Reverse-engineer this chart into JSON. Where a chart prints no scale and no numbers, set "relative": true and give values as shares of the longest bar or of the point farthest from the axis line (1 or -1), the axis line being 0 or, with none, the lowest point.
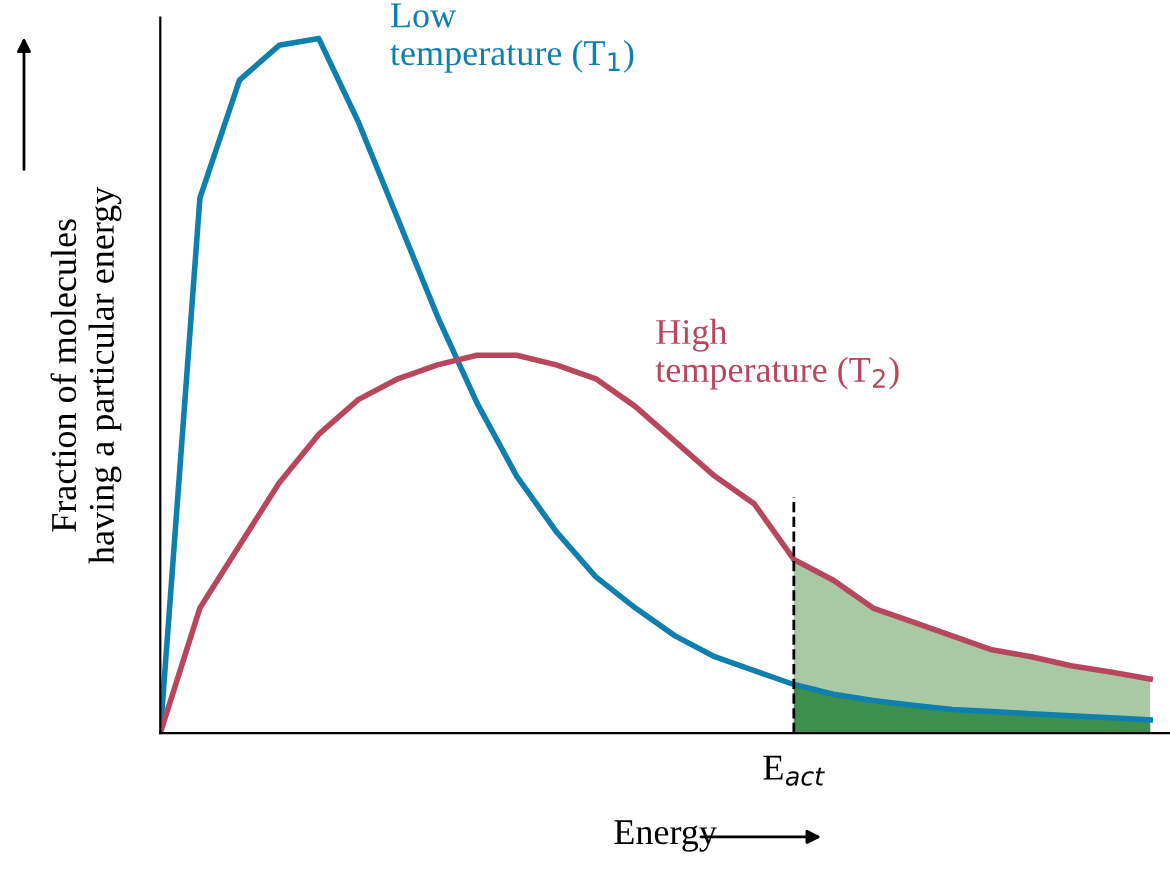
{
  "chart_data": {
    "type": "line",
    "relative": true,
    "xlabel": "Energy",
    "ylabel": "Fraction of molecules\nhaving a particular energy",
    "categories": [
      null,
      null,
      null,
      null,
      null,
      null,
      null,
      null,
      null,
      null,
      null,
      null,
      null,
      null,
      null,
      null,
      null,
      null,
      null,
      null,
      null,
      null,
      null,
      null,
      null,
      null
    ],
    "series": [
      {
        "type": "area",
        "color": "#a9c9a4",
        "values": [
          null,
          null,
          null,
          null,
          null,
          null,
          null,
          null,
          null,
          null,
          null,
          null,
          null,
          null,
          null,
          null,
          0.25,
          0.22,
          0.18,
          0.16,
          0.14,
          0.12,
          0.11,
          0.097,
          0.088,
          0.078
        ]
      },
      {
        "type": "area",
        "color": "#3e8f4e",
        "values": [
          null,
          null,
          null,
          null,
          null,
          null,
          null,
          null,
          null,
          null,
          null,
          null,
          null,
          null,
          null,
          null,
          0.07,
          0.056,
          0.047,
          0.04,
          0.034,
          0.031,
          0.028,
          0.025,
          0.022,
          0.019
        ]
      },
      {
        "name": "Low\ntemperature (T$_{1}$)",
        "color": "#0f7fae",
        "values": [
          0,
          0.77,
          0.94,
          0.99,
          1,
          0.88,
          0.74,
          0.6,
          0.475,
          0.37,
          0.29,
          0.225,
          0.18,
          0.14,
          0.11,
          0.09,
          0.07,
          0.056,
          0.047,
          0.04,
          0.034,
          0.031,
          0.028,
          0.025,
          0.022,
          0.019
        ]
      },
      {
        "name": "High\ntemperature (T$_{2}$)",
        "color": "#b8475d",
        "values": [
          0,
          0.18,
          0.27,
          0.36,
          0.43,
          0.48,
          0.51,
          0.53,
          0.544,
          0.544,
          0.53,
          0.51,
          0.47,
          0.42,
          0.37,
          0.33,
          0.25,
          0.22,
          0.18,
          0.16,
          0.14,
          0.12,
          0.11,
          0.097,
          0.088,
          0.078
        ]
      }
    ],
    "annotations": [
      "E$_{act}$"
    ],
    "line_style": "solid",
    "marker": "none"
  }
}
